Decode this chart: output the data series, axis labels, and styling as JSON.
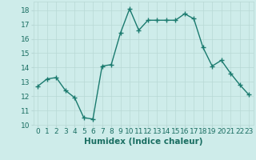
{
  "xlabel": "Humidex (Indice chaleur)",
  "x": [
    0,
    1,
    2,
    3,
    4,
    5,
    6,
    7,
    8,
    9,
    10,
    11,
    12,
    13,
    14,
    15,
    16,
    17,
    18,
    19,
    20,
    21,
    22,
    23
  ],
  "y": [
    12.7,
    13.2,
    13.3,
    12.4,
    11.9,
    10.5,
    10.4,
    14.1,
    14.2,
    16.4,
    18.1,
    16.6,
    17.3,
    17.3,
    17.3,
    17.3,
    17.75,
    17.4,
    15.4,
    14.1,
    14.5,
    13.6,
    12.8,
    12.1
  ],
  "line_color": "#1a7a6e",
  "marker": "+",
  "markersize": 4,
  "linewidth": 1.0,
  "background_color": "#ceecea",
  "grid_color": "#b8d8d5",
  "xlim": [
    -0.5,
    23.5
  ],
  "ylim": [
    10,
    18.6
  ],
  "yticks": [
    10,
    11,
    12,
    13,
    14,
    15,
    16,
    17,
    18
  ],
  "xticks": [
    0,
    1,
    2,
    3,
    4,
    5,
    6,
    7,
    8,
    9,
    10,
    11,
    12,
    13,
    14,
    15,
    16,
    17,
    18,
    19,
    20,
    21,
    22,
    23
  ],
  "xlabel_fontsize": 7.5,
  "tick_fontsize": 6.5,
  "tick_color": "#1a6e62"
}
